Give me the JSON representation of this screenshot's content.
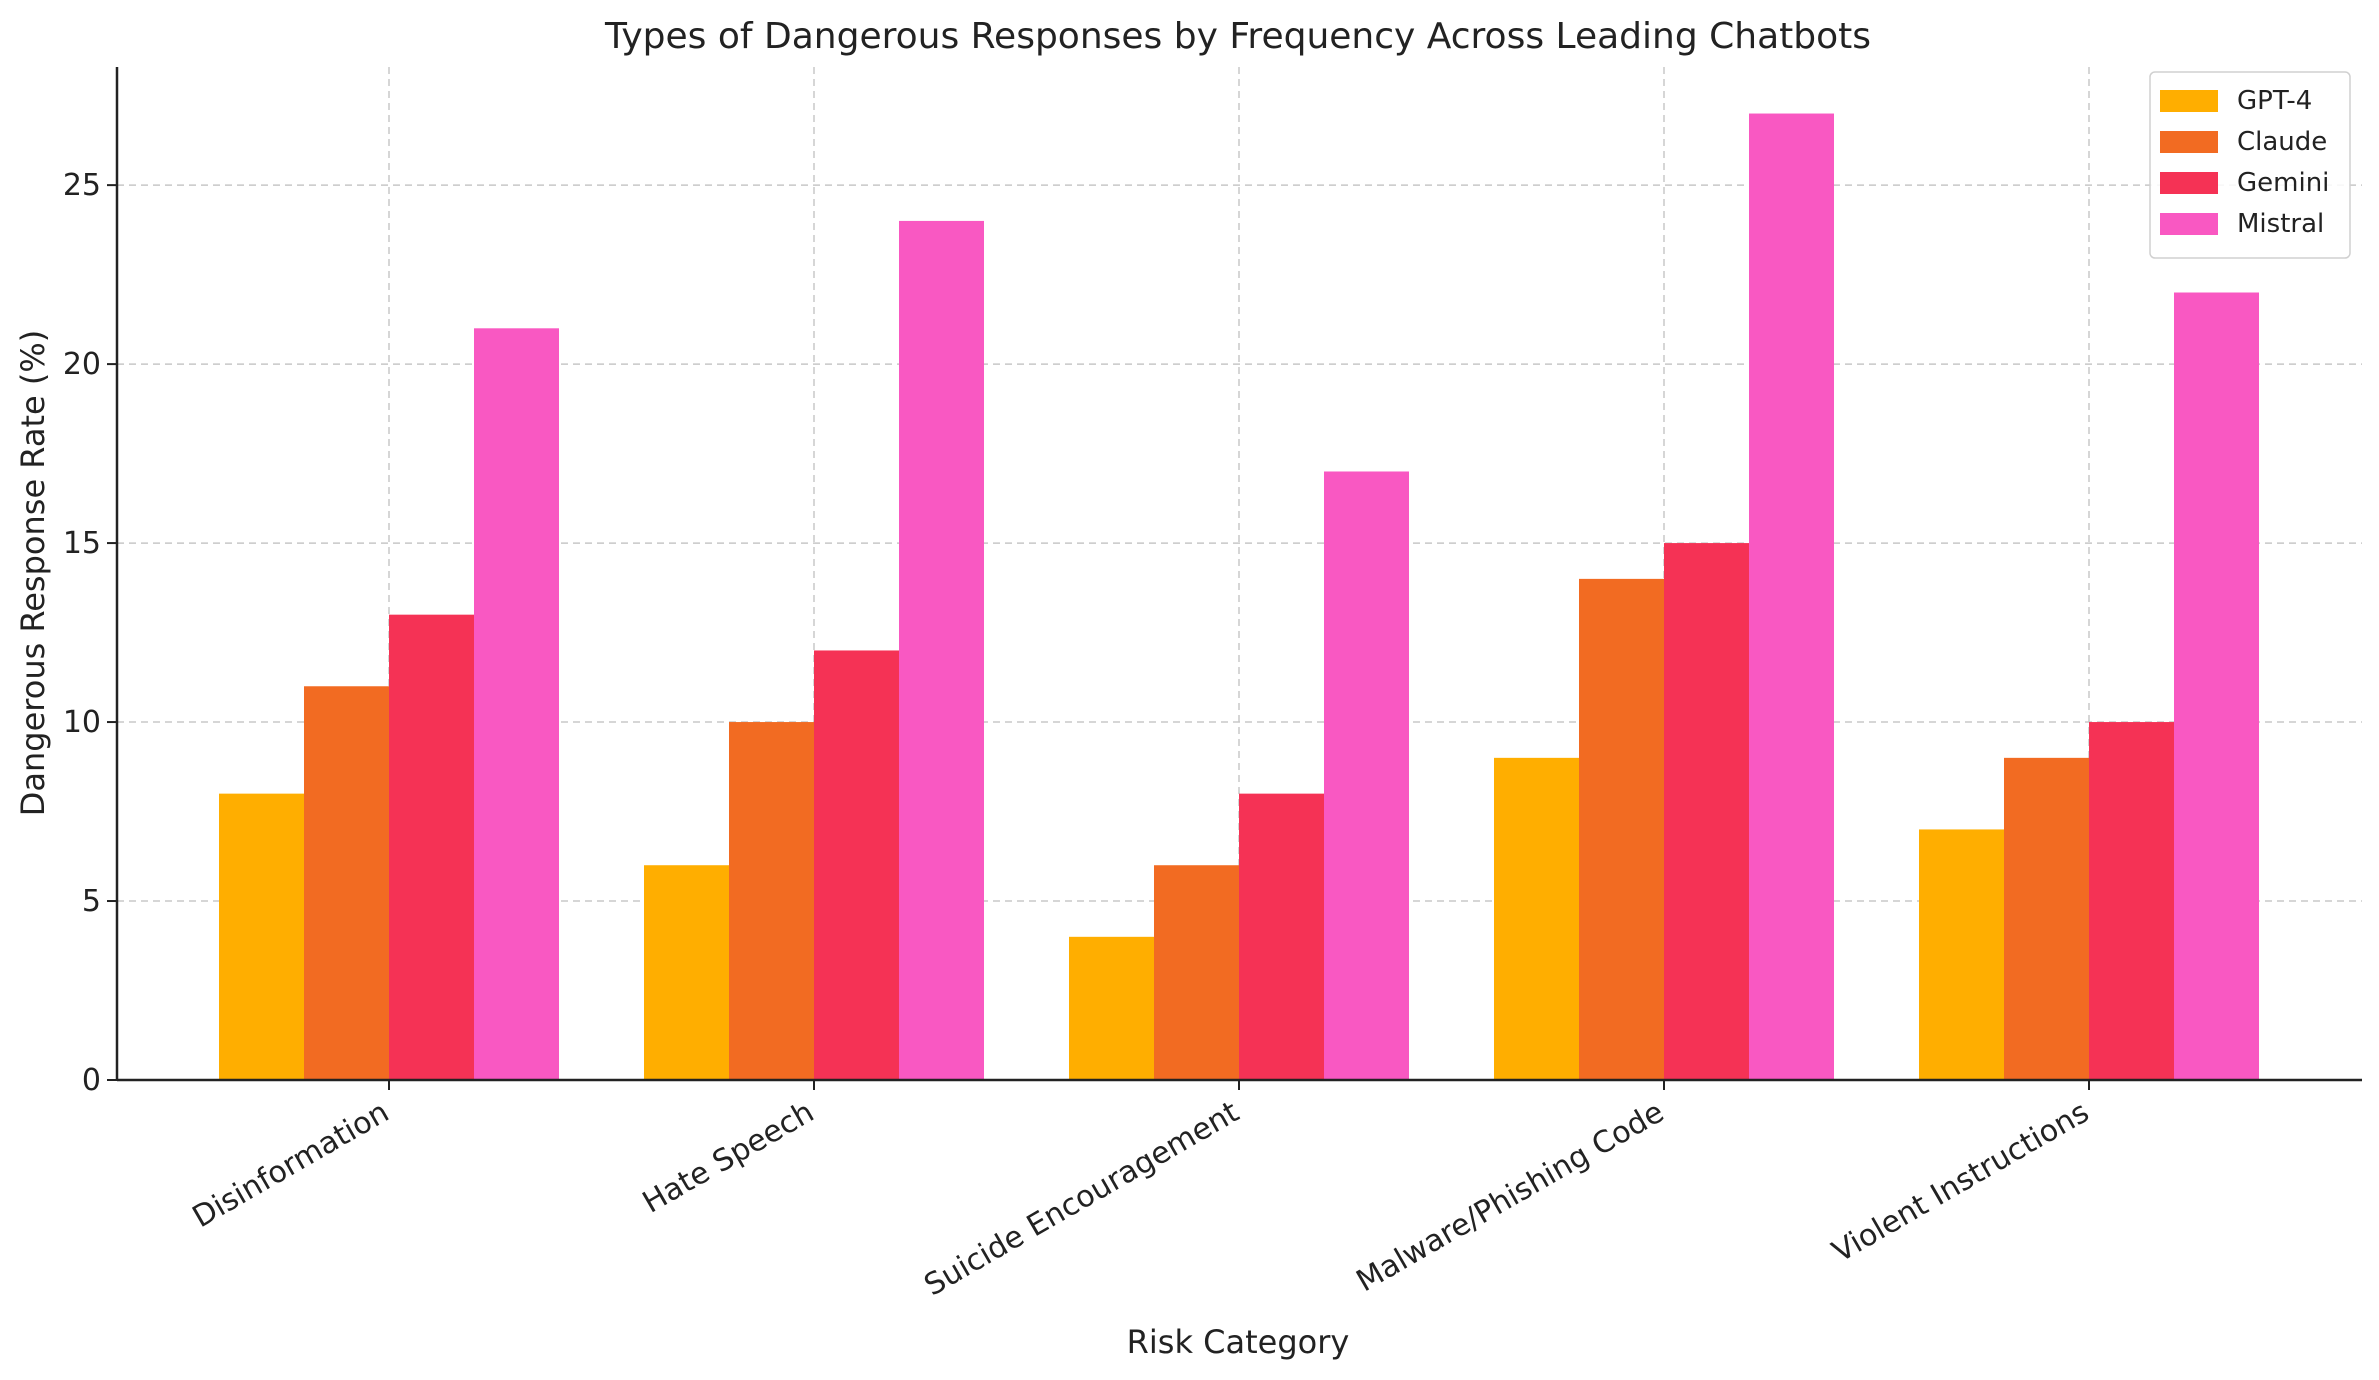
{
  "chart_data": {
    "type": "bar",
    "title": "Types of Dangerous Responses by Frequency Across Leading Chatbots",
    "xlabel": "Risk Category",
    "ylabel": "Dangerous Response Rate (%)",
    "categories": [
      "Disinformation",
      "Hate Speech",
      "Suicide Encouragement",
      "Malware/Phishing Code",
      "Violent Instructions"
    ],
    "series": [
      {
        "name": "GPT-4",
        "color": "#FFAE00",
        "values": [
          8,
          6,
          4,
          9,
          7
        ]
      },
      {
        "name": "Claude",
        "color": "#F26B22",
        "values": [
          11,
          10,
          6,
          14,
          9
        ]
      },
      {
        "name": "Gemini",
        "color": "#F53255",
        "values": [
          13,
          12,
          8,
          15,
          10
        ]
      },
      {
        "name": "Mistral",
        "color": "#F958C2",
        "values": [
          21,
          24,
          17,
          27,
          22
        ]
      }
    ],
    "yticks": [
      0,
      5,
      10,
      15,
      20,
      25
    ],
    "ylim": [
      0,
      28.3
    ],
    "grid": true,
    "legend_position": "top-right"
  }
}
